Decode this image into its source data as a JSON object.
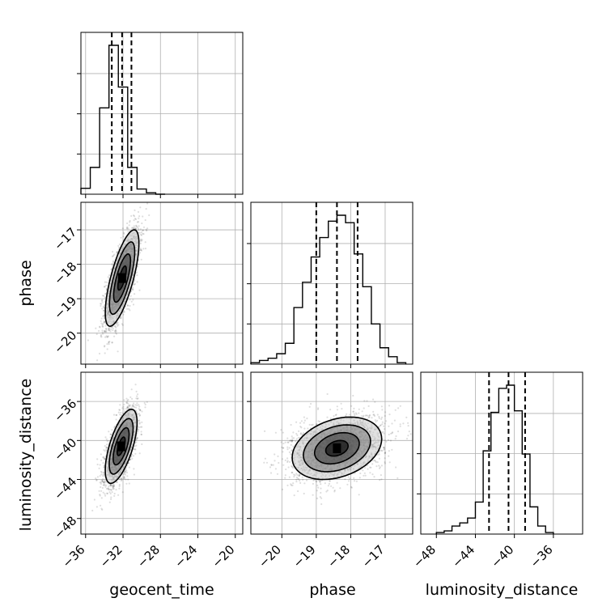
{
  "chart_data": {
    "type": "corner",
    "title": "",
    "parameters": [
      "geocent_time",
      "phase",
      "luminosity_distance"
    ],
    "axes": {
      "geocent_time": {
        "range": [
          -36.5,
          -19.2
        ],
        "ticks": [
          -36,
          -32,
          -28,
          -24,
          -20
        ],
        "tick_labels": [
          "−36",
          "−32",
          "−28",
          "−24",
          "−20"
        ]
      },
      "phase": {
        "range": [
          -20.9,
          -16.2
        ],
        "ticks": [
          -20,
          -19,
          -18,
          -17
        ],
        "tick_labels": [
          "−20",
          "−19",
          "−18",
          "−17"
        ]
      },
      "luminosity_distance": {
        "range": [
          -49.6,
          -33.0
        ],
        "ticks": [
          -48,
          -44,
          -40,
          -36
        ],
        "tick_labels": [
          "−48",
          "−44",
          "−40",
          "−36"
        ]
      }
    },
    "histograms": [
      {
        "parameter": "geocent_time",
        "bin_edges": [
          -36.5,
          -35.5,
          -34.5,
          -33.5,
          -32.5,
          -31.5,
          -30.5,
          -29.5,
          -28.5,
          -27.5
        ],
        "counts": [
          0.04,
          0.18,
          0.58,
          1.0,
          0.72,
          0.18,
          0.035,
          0.01,
          0.0
        ],
        "quantiles": [
          -33.2,
          -32.1,
          -31.1
        ]
      },
      {
        "parameter": "phase",
        "bin_edges": [
          -20.9,
          -20.65,
          -20.4,
          -20.15,
          -19.9,
          -19.65,
          -19.4,
          -19.15,
          -18.9,
          -18.65,
          -18.4,
          -18.15,
          -17.9,
          -17.65,
          -17.4,
          -17.15,
          -16.9,
          -16.65,
          -16.4
        ],
        "counts": [
          0.01,
          0.025,
          0.04,
          0.07,
          0.14,
          0.38,
          0.55,
          0.72,
          0.85,
          0.96,
          1.0,
          0.95,
          0.74,
          0.52,
          0.27,
          0.11,
          0.05,
          0.01
        ],
        "quantiles": [
          -19.0,
          -18.4,
          -17.8
        ]
      },
      {
        "parameter": "luminosity_distance",
        "bin_edges": [
          -48.0,
          -47.2,
          -46.4,
          -45.6,
          -44.8,
          -44.0,
          -43.2,
          -42.4,
          -41.6,
          -40.8,
          -40.0,
          -39.2,
          -38.4,
          -37.6,
          -36.8,
          -36.0
        ],
        "counts": [
          0.01,
          0.02,
          0.05,
          0.07,
          0.1,
          0.2,
          0.52,
          0.76,
          0.91,
          0.93,
          0.77,
          0.5,
          0.17,
          0.05,
          0.01
        ],
        "quantiles": [
          -42.6,
          -40.6,
          -38.9
        ]
      }
    ],
    "pairs": [
      {
        "x": "geocent_time",
        "y": "phase",
        "center": [
          -32.1,
          -18.4
        ],
        "sigma": [
          0.9,
          0.7
        ],
        "rho": 0.72,
        "samples": 2200
      },
      {
        "x": "geocent_time",
        "y": "luminosity_distance",
        "center": [
          -32.2,
          -40.6
        ],
        "sigma": [
          0.85,
          1.9
        ],
        "rho": 0.65,
        "samples": 2200
      },
      {
        "x": "phase",
        "y": "luminosity_distance",
        "center": [
          -18.4,
          -40.8
        ],
        "sigma": [
          0.65,
          1.6
        ],
        "rho": 0.3,
        "samples": 2600
      }
    ],
    "contour_levels_sigma": [
      0.5,
      1.0,
      1.5,
      2.0
    ],
    "grid": true,
    "legend": false
  }
}
